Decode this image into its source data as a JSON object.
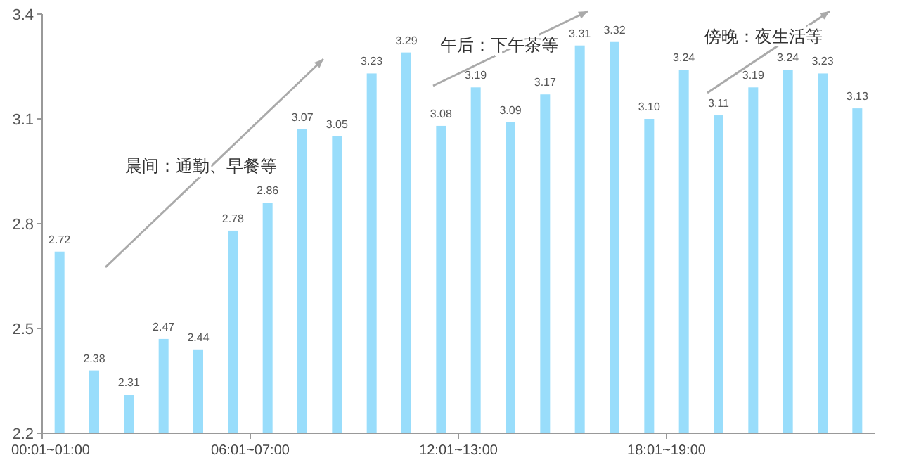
{
  "chart_data": {
    "type": "bar",
    "categories": [
      "00:01~01:00",
      null,
      null,
      null,
      null,
      null,
      "06:01~07:00",
      null,
      null,
      null,
      null,
      null,
      "12:01~13:00",
      null,
      null,
      null,
      null,
      null,
      "18:01~19:00",
      null,
      null,
      null,
      null,
      null
    ],
    "values": [
      2.72,
      2.38,
      2.31,
      2.47,
      2.44,
      2.78,
      2.86,
      3.07,
      3.05,
      3.23,
      3.29,
      3.08,
      3.19,
      3.09,
      3.17,
      3.31,
      3.32,
      3.1,
      3.24,
      3.11,
      3.19,
      3.24,
      3.23,
      3.13
    ],
    "value_labels": [
      "2.72",
      "2.38",
      "2.31",
      "2.47",
      "2.44",
      "2.78",
      "2.86",
      "3.07",
      "3.05",
      "3.23",
      "3.29",
      "3.08",
      "3.19",
      "3.09",
      "3.17",
      "3.31",
      "3.32",
      "3.10",
      "3.24",
      "3.11",
      "3.19",
      "3.24",
      "3.23",
      "3.13"
    ],
    "color": "#99ddfb",
    "ylim": [
      2.2,
      3.4
    ],
    "yticks": [
      2.2,
      2.5,
      2.8,
      3.1,
      3.4
    ],
    "grid": false,
    "annotations": [
      "晨间：通勤、早餐等",
      "午后：下午茶等",
      "傍晚：夜生活等"
    ]
  }
}
